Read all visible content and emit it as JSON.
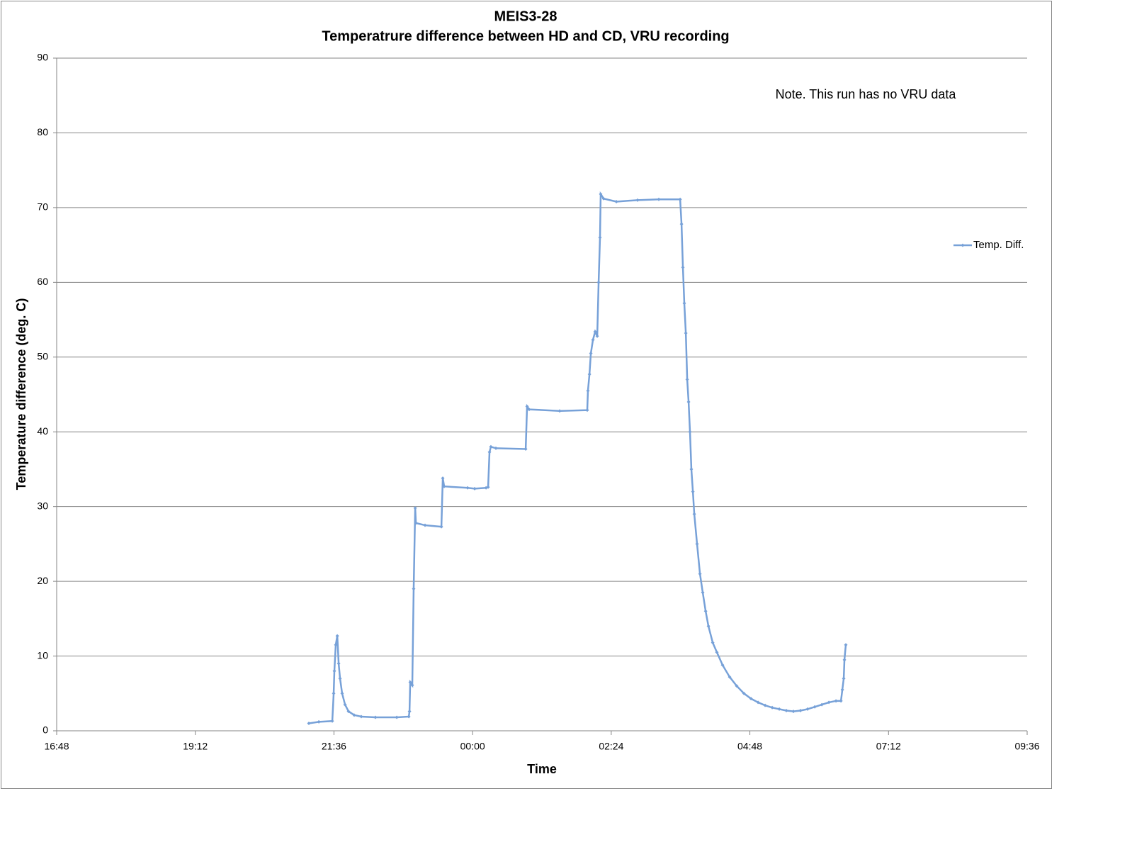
{
  "chart_data": {
    "type": "line",
    "title": "MEIS3-28",
    "subtitle": "Temperatrure difference between HD and CD, VRU recording",
    "x_label": "Time",
    "y_label": "Temperature difference (deg. C)",
    "annotation": "Note. This run has no VRU data",
    "legend": "right",
    "grid": true,
    "xlim": [
      0.7,
      1.4
    ],
    "xticks": [
      {
        "value": 0.7,
        "label": "16:48"
      },
      {
        "value": 0.8,
        "label": "19:12"
      },
      {
        "value": 0.9,
        "label": "21:36"
      },
      {
        "value": 1.0,
        "label": "00:00"
      },
      {
        "value": 1.1,
        "label": "02:24"
      },
      {
        "value": 1.2,
        "label": "04:48"
      },
      {
        "value": 1.3,
        "label": "07:12"
      },
      {
        "value": 1.4,
        "label": "09:36"
      }
    ],
    "ylim": [
      0,
      90
    ],
    "yticks": [
      0,
      10,
      20,
      30,
      40,
      50,
      60,
      70,
      80,
      90
    ],
    "x": [
      0.8819,
      0.8891,
      0.8988,
      0.8998,
      0.9003,
      0.9013,
      0.9024,
      0.9034,
      0.9044,
      0.9059,
      0.908,
      0.9105,
      0.9146,
      0.9197,
      0.9299,
      0.9453,
      0.954,
      0.9545,
      0.955,
      0.9565,
      0.9575,
      0.9586,
      0.9591,
      0.9657,
      0.9775,
      0.9785,
      0.9795,
      0.9964,
      1.0015,
      1.0097,
      1.0112,
      1.0122,
      1.0132,
      1.0168,
      1.0383,
      1.0393,
      1.0408,
      1.0628,
      1.0827,
      1.0832,
      1.0843,
      1.0853,
      1.0868,
      1.0884,
      1.0899,
      1.0909,
      1.0919,
      1.0924,
      1.0945,
      1.1037,
      1.119,
      1.1343,
      1.1497,
      1.1507,
      1.1517,
      1.1527,
      1.1538,
      1.1548,
      1.1558,
      1.1568,
      1.1578,
      1.1589,
      1.1599,
      1.1619,
      1.164,
      1.166,
      1.1681,
      1.1701,
      1.1732,
      1.1762,
      1.1803,
      1.1854,
      1.1905,
      1.1957,
      1.2008,
      1.2059,
      1.211,
      1.2161,
      1.2212,
      1.2263,
      1.2314,
      1.2365,
      1.2416,
      1.2468,
      1.2519,
      1.257,
      1.2621,
      1.2657,
      1.2667,
      1.2677,
      1.2682,
      1.2692
    ],
    "series": [
      {
        "name": "Temp. Diff.",
        "color": "#77a1d8",
        "values": [
          1.0,
          1.2,
          1.3,
          5,
          8,
          11.5,
          12.7,
          9,
          7,
          5,
          3.5,
          2.6,
          2.1,
          1.9,
          1.8,
          1.8,
          1.9,
          2.6,
          6.5,
          6.1,
          19,
          29.8,
          27.8,
          27.5,
          27.3,
          33.8,
          32.7,
          32.5,
          32.4,
          32.5,
          32.6,
          37.3,
          38,
          37.8,
          37.7,
          43.4,
          43,
          42.8,
          42.9,
          45.5,
          47.7,
          50.5,
          52.3,
          53.4,
          52.8,
          60,
          66,
          71.8,
          71.2,
          70.8,
          71,
          71.1,
          71.1,
          67.8,
          62,
          57.2,
          53.2,
          47,
          44,
          40,
          35,
          32,
          29,
          25,
          21,
          18.5,
          16,
          14,
          11.8,
          10.5,
          8.8,
          7.2,
          6,
          5,
          4.3,
          3.8,
          3.4,
          3.1,
          2.9,
          2.7,
          2.6,
          2.7,
          2.9,
          3.2,
          3.5,
          3.8,
          4.0,
          4.0,
          5.5,
          7,
          9.5,
          11.5
        ]
      }
    ]
  }
}
